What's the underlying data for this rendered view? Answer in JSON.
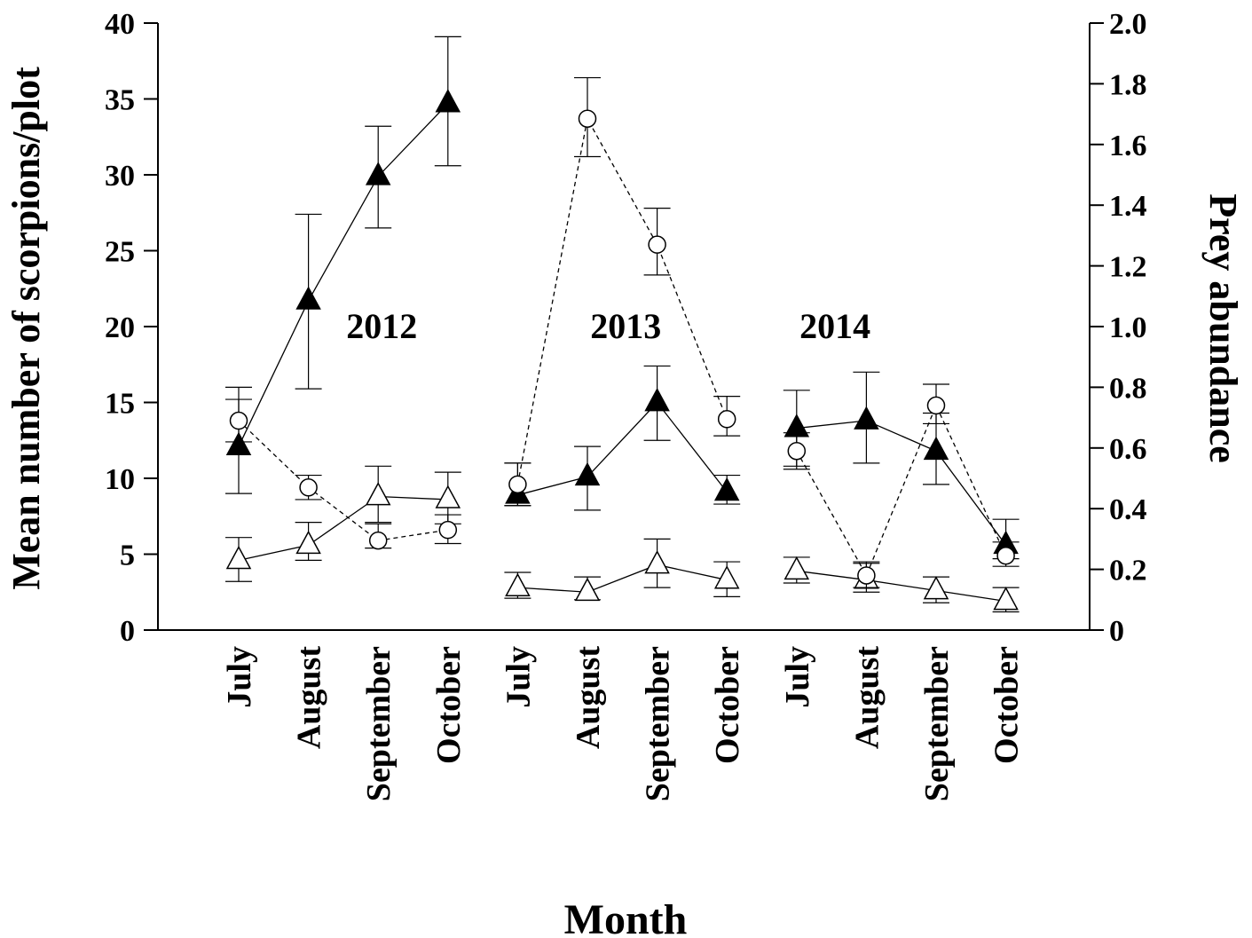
{
  "chart_data": {
    "type": "line",
    "xlabel": "Month",
    "ylabel_left": "Mean number of scorpions/plot",
    "ylabel_right": "Prey abundance",
    "ylim_left": [
      0,
      40
    ],
    "ylim_right": [
      0,
      2.0
    ],
    "yticks_left": [
      "0",
      "5",
      "10",
      "15",
      "20",
      "25",
      "30",
      "35",
      "40"
    ],
    "yticks_right": [
      "0",
      "0.2",
      "0.4",
      "0.6",
      "0.8",
      "1.0",
      "1.2",
      "1.4",
      "1.6",
      "1.8",
      "2.0"
    ],
    "categories": [
      "July",
      "August",
      "September",
      "October",
      "July",
      "August",
      "September",
      "October",
      "July",
      "August",
      "September",
      "October"
    ],
    "year_labels": [
      {
        "text": "2012",
        "center_index": 2
      },
      {
        "text": "2013",
        "center_index": 5.5
      },
      {
        "text": "2014",
        "center_index": 8.5
      }
    ],
    "groups": [
      [
        0,
        1,
        2,
        3
      ],
      [
        4,
        5,
        6,
        7
      ],
      [
        8,
        9,
        10,
        11
      ]
    ],
    "series": [
      {
        "axis": "left",
        "marker": "filled-triangle",
        "line": "solid",
        "values": [
          12.1,
          21.7,
          29.9,
          34.7,
          8.9,
          10.1,
          15.0,
          9.1,
          13.3,
          13.8,
          11.8,
          5.6
        ],
        "err_upper": [
          16.0,
          27.4,
          33.2,
          39.1,
          11.0,
          12.1,
          17.4,
          10.2,
          15.8,
          17.0,
          14.3,
          7.3
        ],
        "err_lower": [
          9.0,
          15.9,
          26.5,
          30.6,
          8.2,
          7.9,
          12.5,
          8.3,
          10.8,
          11.0,
          9.6,
          4.7
        ]
      },
      {
        "axis": "left",
        "marker": "open-triangle",
        "line": "solid",
        "values": [
          4.6,
          5.6,
          8.8,
          8.6,
          2.8,
          2.5,
          4.3,
          3.3,
          3.9,
          3.3,
          2.6,
          1.9
        ],
        "err_upper": [
          6.1,
          7.1,
          10.8,
          10.4,
          3.8,
          3.5,
          6.0,
          4.5,
          4.8,
          4.5,
          3.5,
          2.8
        ],
        "err_lower": [
          3.2,
          4.6,
          7.1,
          7.0,
          2.1,
          2.0,
          2.8,
          2.2,
          3.1,
          2.5,
          1.8,
          1.2
        ]
      },
      {
        "axis": "right",
        "marker": "open-circle",
        "line": "dashed",
        "values": [
          0.69,
          0.47,
          0.295,
          0.33,
          0.48,
          1.685,
          1.27,
          0.695,
          0.59,
          0.18,
          0.74,
          0.245
        ],
        "err_upper": [
          0.76,
          0.51,
          0.35,
          0.38,
          0.55,
          1.82,
          1.39,
          0.77,
          0.65,
          0.22,
          0.81,
          0.29
        ],
        "err_lower": [
          0.62,
          0.43,
          0.27,
          0.285,
          0.41,
          1.56,
          1.17,
          0.64,
          0.53,
          0.14,
          0.68,
          0.21
        ]
      }
    ]
  }
}
